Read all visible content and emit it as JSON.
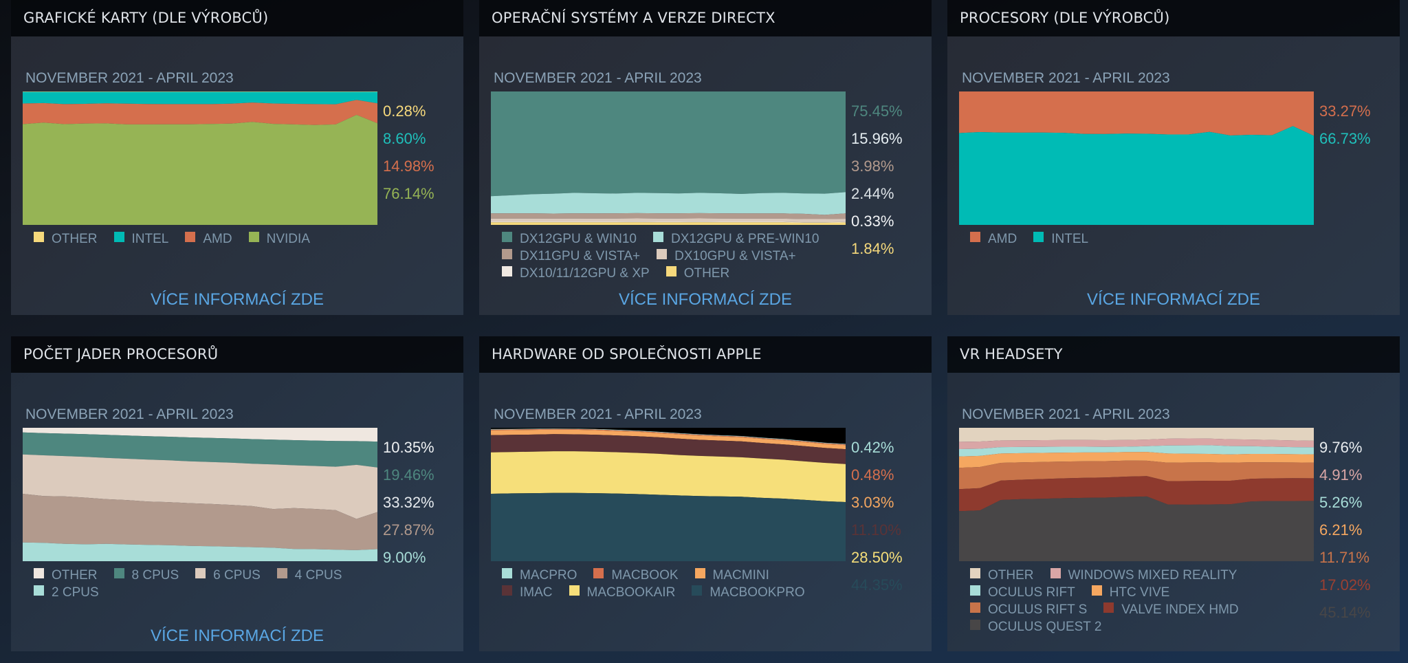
{
  "panels": [
    {
      "title": "GRAFICKÉ KARTY (DLE VÝROBCŮ)",
      "date_range": "NOVEMBER 2021 - APRIL 2023",
      "more_link": "VÍCE INFORMACÍ ZDE",
      "legend_rows": [
        [
          0,
          1,
          2,
          3
        ]
      ],
      "values_order": [
        0,
        1,
        2,
        3
      ]
    },
    {
      "title": "OPERAČNÍ SYSTÉMY A VERZE DIRECTX",
      "date_range": "NOVEMBER 2021 - APRIL 2023",
      "more_link": "VÍCE INFORMACÍ ZDE",
      "legend_rows": [
        [
          0,
          1
        ],
        [
          2,
          3
        ],
        [
          4,
          5
        ]
      ],
      "values_order": [
        0,
        1,
        2,
        3,
        4,
        5
      ]
    },
    {
      "title": "PROCESORY (DLE VÝROBCŮ)",
      "date_range": "NOVEMBER 2021 - APRIL 2023",
      "more_link": "VÍCE INFORMACÍ ZDE",
      "legend_rows": [
        [
          0,
          1
        ]
      ],
      "values_order": [
        0,
        1
      ]
    },
    {
      "title": "POČET JADER PROCESORŮ",
      "date_range": "NOVEMBER 2021 - APRIL 2023",
      "more_link": "VÍCE INFORMACÍ ZDE",
      "legend_rows": [
        [
          0,
          1,
          2,
          3
        ],
        [
          4
        ]
      ],
      "values_order": [
        0,
        1,
        2,
        3,
        4
      ]
    },
    {
      "title": "HARDWARE OD SPOLEČNOSTI APPLE",
      "date_range": "NOVEMBER 2021 - APRIL 2023",
      "more_link": "",
      "legend_rows": [
        [
          0,
          1,
          2
        ],
        [
          3,
          4,
          5
        ]
      ],
      "values_order": [
        0,
        1,
        2,
        3,
        4,
        5
      ]
    },
    {
      "title": "VR HEADSETY",
      "date_range": "NOVEMBER 2021 - APRIL 2023",
      "more_link": "",
      "legend_rows": [
        [
          0,
          1
        ],
        [
          2,
          3
        ],
        [
          4,
          5
        ],
        [
          6
        ]
      ],
      "values_order": [
        0,
        1,
        2,
        3,
        4,
        5,
        6
      ]
    }
  ],
  "chart_data": [
    {
      "type": "area",
      "title": "GRAFICKÉ KARTY (DLE VÝROBCŮ)",
      "xlabel": "NOVEMBER 2021 - APRIL 2023",
      "ylim": [
        0,
        100
      ],
      "stacked": true,
      "grid": false,
      "legend": "bottom",
      "series": [
        {
          "name": "OTHER",
          "color": "#f6d97c",
          "label_color": "#f6d97c",
          "latest": "0.28%",
          "values": [
            0.3,
            0.3,
            0.3,
            0.3,
            0.3,
            0.3,
            0.3,
            0.3,
            0.3,
            0.3,
            0.3,
            0.3,
            0.3,
            0.3,
            0.3,
            0.3,
            0.3,
            0.28
          ]
        },
        {
          "name": "INTEL",
          "color": "#00bbb5",
          "label_color": "#1fc0bb",
          "latest": "8.60%",
          "values": [
            8.7,
            8.4,
            9.2,
            9.0,
            8.6,
            8.8,
            9.1,
            9.2,
            9.2,
            9.2,
            8.8,
            8.0,
            8.7,
            9.0,
            9.2,
            9.3,
            6.0,
            8.6
          ]
        },
        {
          "name": "AMD",
          "color": "#d56f4d",
          "label_color": "#d56f4d",
          "latest": "14.98%",
          "values": [
            15.5,
            14.6,
            15.0,
            14.7,
            15.0,
            15.6,
            15.3,
            15.1,
            15.1,
            14.9,
            15.0,
            14.5,
            15.3,
            15.4,
            15.6,
            15.1,
            11.2,
            14.98
          ]
        },
        {
          "name": "NVIDIA",
          "color": "#96b455",
          "label_color": "#96b455",
          "latest": "76.14%",
          "values": [
            75.5,
            76.7,
            75.5,
            76.0,
            76.1,
            75.3,
            75.3,
            75.4,
            75.4,
            75.6,
            75.9,
            77.2,
            75.7,
            75.3,
            74.9,
            75.3,
            82.5,
            76.14
          ]
        }
      ]
    },
    {
      "type": "area",
      "title": "OPERAČNÍ SYSTÉMY A VERZE DIRECTX",
      "xlabel": "NOVEMBER 2021 - APRIL 2023",
      "ylim": [
        0,
        100
      ],
      "stacked": true,
      "grid": false,
      "legend": "bottom",
      "series": [
        {
          "name": "DX12GPU & WIN10",
          "color": "#4e877f",
          "label_color": "#4e877f",
          "latest": "75.45%",
          "values": [
            78.5,
            77.8,
            77.0,
            76.6,
            76.0,
            76.3,
            76.5,
            76.0,
            76.2,
            76.4,
            76.0,
            76.3,
            76.8,
            76.2,
            76.0,
            76.4,
            76.6,
            75.45
          ]
        },
        {
          "name": "DX12GPU & PRE-WIN10",
          "color": "#a8ddd8",
          "label_color": "#e6eef2",
          "latest": "15.96%",
          "values": [
            12.9,
            13.5,
            14.3,
            14.9,
            15.3,
            15.1,
            14.8,
            15.2,
            15.1,
            14.9,
            15.2,
            15.0,
            14.6,
            15.2,
            15.4,
            15.3,
            15.9,
            15.96
          ]
        },
        {
          "name": "DX11GPU & VISTA+",
          "color": "#b29a8d",
          "label_color": "#b29a8d",
          "latest": "3.98%",
          "values": [
            3.9,
            3.9,
            3.9,
            3.8,
            3.9,
            3.9,
            3.9,
            3.9,
            3.9,
            3.9,
            3.9,
            3.9,
            3.9,
            3.9,
            3.9,
            3.9,
            3.1,
            3.98
          ]
        },
        {
          "name": "DX10GPU & VISTA+",
          "color": "#dccbbd",
          "label_color": "#dce2e6",
          "latest": "2.44%",
          "values": [
            2.4,
            2.5,
            2.5,
            2.4,
            2.5,
            2.4,
            2.5,
            2.5,
            2.5,
            2.5,
            2.5,
            2.5,
            2.4,
            2.4,
            2.4,
            2.4,
            2.4,
            2.44
          ]
        },
        {
          "name": "DX10/11/12GPU & XP",
          "color": "#f0e9e2",
          "label_color": "#f0f2f4",
          "latest": "0.33%",
          "values": [
            0.4,
            0.4,
            0.4,
            0.4,
            0.4,
            0.4,
            0.4,
            0.4,
            0.4,
            0.4,
            0.4,
            0.4,
            0.4,
            0.4,
            0.4,
            0.3,
            0.3,
            0.33
          ]
        },
        {
          "name": "OTHER",
          "color": "#f6d97c",
          "label_color": "#f6d97c",
          "latest": "1.84%",
          "values": [
            1.9,
            1.9,
            1.9,
            1.9,
            1.9,
            1.9,
            1.9,
            2.0,
            1.9,
            1.9,
            2.0,
            1.9,
            1.9,
            1.9,
            1.9,
            1.7,
            1.7,
            1.84
          ]
        }
      ]
    },
    {
      "type": "area",
      "title": "PROCESORY (DLE VÝROBCŮ)",
      "xlabel": "NOVEMBER 2021 - APRIL 2023",
      "ylim": [
        0,
        100
      ],
      "stacked": true,
      "grid": false,
      "legend": "bottom",
      "series": [
        {
          "name": "AMD",
          "color": "#d56f4d",
          "label_color": "#d56f4d",
          "latest": "33.27%",
          "values": [
            31.2,
            30.4,
            30.8,
            30.9,
            30.8,
            31.0,
            31.8,
            31.9,
            31.6,
            31.7,
            32.2,
            32.2,
            30.3,
            33.0,
            32.5,
            32.8,
            26.0,
            33.27
          ]
        },
        {
          "name": "INTEL",
          "color": "#00bbb5",
          "label_color": "#1fc0bb",
          "latest": "66.73%",
          "values": [
            68.8,
            69.6,
            69.2,
            69.1,
            69.2,
            69.0,
            68.2,
            68.1,
            68.4,
            68.3,
            67.8,
            67.8,
            69.7,
            67.0,
            67.5,
            67.2,
            74.0,
            66.73
          ]
        }
      ]
    },
    {
      "type": "area",
      "title": "POČET JADER PROCESORŮ",
      "xlabel": "NOVEMBER 2021 - APRIL 2023",
      "ylim": [
        0,
        100
      ],
      "stacked": true,
      "grid": false,
      "legend": "bottom",
      "series": [
        {
          "name": "OTHER",
          "color": "#efe7e0",
          "label_color": "#eef1f3",
          "latest": "10.35%",
          "values": [
            3.5,
            4.0,
            4.4,
            4.8,
            5.3,
            5.8,
            6.3,
            6.7,
            7.2,
            7.6,
            8.0,
            8.5,
            8.9,
            9.3,
            9.6,
            9.9,
            10.0,
            10.35
          ]
        },
        {
          "name": "8 CPUS",
          "color": "#4e877f",
          "label_color": "#4e877f",
          "latest": "19.46%",
          "values": [
            16.5,
            16.6,
            16.8,
            17.0,
            17.2,
            17.4,
            17.5,
            17.7,
            17.9,
            18.0,
            18.2,
            18.4,
            18.6,
            18.8,
            19.0,
            19.3,
            17.8,
            19.46
          ]
        },
        {
          "name": "6 CPUS",
          "color": "#dccbbd",
          "label_color": "#e6eaee",
          "latest": "33.32%",
          "values": [
            29.5,
            30.6,
            30.2,
            30.5,
            31.0,
            31.0,
            31.5,
            31.3,
            31.4,
            31.5,
            31.6,
            31.8,
            33.4,
            32.1,
            32.2,
            32.5,
            40.5,
            33.32
          ]
        },
        {
          "name": "4 CPUS",
          "color": "#b29a8d",
          "label_color": "#b29a8d",
          "latest": "27.87%",
          "values": [
            36.5,
            35.0,
            35.6,
            35.0,
            33.5,
            33.2,
            32.5,
            32.3,
            32.0,
            31.7,
            31.3,
            30.8,
            29.0,
            30.6,
            30.2,
            29.7,
            23.4,
            27.87
          ]
        },
        {
          "name": "2 CPUS",
          "color": "#a8ddd8",
          "label_color": "#a8ddd8",
          "latest": "9.00%",
          "values": [
            14.0,
            13.8,
            13.0,
            12.7,
            13.0,
            12.6,
            12.2,
            12.0,
            11.5,
            11.2,
            10.9,
            10.5,
            10.1,
            9.2,
            9.0,
            8.6,
            8.3,
            9.0
          ]
        }
      ]
    },
    {
      "type": "area",
      "title": "HARDWARE OD SPOLEČNOSTI APPLE",
      "xlabel": "NOVEMBER 2021 - APRIL 2023",
      "ylim": [
        0,
        100
      ],
      "stacked": true,
      "grid": false,
      "legend": "bottom",
      "series": [
        {
          "name": "MACPRO",
          "color": "#a8ddd8",
          "label_color": "#a8ddd8",
          "latest": "0.42%",
          "values": [
            0.4,
            0.4,
            0.4,
            0.4,
            0.4,
            0.4,
            0.4,
            0.4,
            0.4,
            0.4,
            0.4,
            0.4,
            0.4,
            0.4,
            0.4,
            0.4,
            0.4,
            0.42
          ]
        },
        {
          "name": "MACBOOK",
          "color": "#d56f4d",
          "label_color": "#d56f4d",
          "latest": "0.48%",
          "values": [
            0.5,
            0.5,
            0.5,
            0.5,
            0.5,
            0.5,
            0.5,
            0.5,
            0.5,
            0.5,
            0.5,
            0.5,
            0.5,
            0.5,
            0.5,
            0.5,
            0.5,
            0.48
          ]
        },
        {
          "name": "MACMINI",
          "color": "#f5a760",
          "label_color": "#f5a760",
          "latest": "3.03%",
          "values": [
            3.6,
            3.5,
            3.5,
            3.4,
            3.4,
            3.4,
            3.3,
            3.3,
            3.2,
            3.2,
            3.2,
            3.1,
            3.1,
            3.1,
            3.1,
            3.0,
            3.0,
            3.03
          ]
        },
        {
          "name": "IMAC",
          "color": "#5a3337",
          "label_color": "#5a3337",
          "latest": "11.10%",
          "values": [
            12.9,
            12.9,
            12.8,
            12.8,
            12.7,
            12.7,
            12.6,
            12.5,
            12.4,
            12.3,
            12.1,
            12.0,
            11.9,
            11.7,
            11.5,
            11.4,
            11.2,
            11.1
          ]
        },
        {
          "name": "MACBOOKAIR",
          "color": "#f6df7a",
          "label_color": "#f6df7a",
          "latest": "28.50%",
          "values": [
            31.1,
            31.0,
            31.1,
            31.2,
            31.2,
            31.1,
            31.0,
            30.9,
            30.7,
            30.3,
            30.1,
            29.8,
            29.6,
            29.4,
            29.2,
            28.9,
            28.7,
            28.5
          ]
        },
        {
          "name": "MACBOOKPRO",
          "color": "#274b5a",
          "label_color": "#274b5a",
          "latest": "44.35%",
          "values": [
            50.5,
            50.8,
            51.0,
            51.2,
            51.2,
            51.0,
            50.7,
            50.3,
            49.8,
            49.3,
            48.8,
            48.6,
            48.3,
            47.5,
            46.9,
            46.0,
            45.0,
            44.35
          ]
        }
      ]
    },
    {
      "type": "area",
      "title": "VR HEADSETY",
      "xlabel": "NOVEMBER 2021 - APRIL 2023",
      "ylim": [
        0,
        100
      ],
      "stacked": true,
      "grid": false,
      "legend": "bottom",
      "series": [
        {
          "name": "OTHER",
          "color": "#e2d3bf",
          "label_color": "#e8ecef",
          "latest": "9.76%",
          "values": [
            10.5,
            10.3,
            9.5,
            9.4,
            9.3,
            9.2,
            9.2,
            9.3,
            9.2,
            8.8,
            8.2,
            8.0,
            8.1,
            8.6,
            8.8,
            9.2,
            9.5,
            9.76
          ]
        },
        {
          "name": "WINDOWS MIXED REALITY",
          "color": "#d9a6a6",
          "label_color": "#d9a6a6",
          "latest": "4.91%",
          "values": [
            5.5,
            5.4,
            5.0,
            5.0,
            5.0,
            5.0,
            5.0,
            5.0,
            5.0,
            5.0,
            5.1,
            5.2,
            5.0,
            5.1,
            5.0,
            5.0,
            5.0,
            4.91
          ]
        },
        {
          "name": "OCULUS RIFT",
          "color": "#a8ddd8",
          "label_color": "#a8ddd8",
          "latest": "5.26%",
          "values": [
            5.5,
            5.4,
            4.8,
            4.6,
            4.5,
            4.4,
            4.3,
            4.2,
            4.0,
            4.3,
            6.0,
            6.3,
            6.5,
            6.3,
            5.8,
            5.4,
            5.3,
            5.26
          ]
        },
        {
          "name": "HTC VIVE",
          "color": "#f5a760",
          "label_color": "#f5a760",
          "latest": "6.21%",
          "values": [
            8.5,
            8.3,
            7.0,
            6.9,
            6.8,
            6.7,
            6.6,
            6.5,
            6.4,
            6.6,
            6.9,
            6.5,
            6.3,
            6.2,
            6.2,
            6.3,
            6.2,
            6.21
          ]
        },
        {
          "name": "OCULUS RIFT S",
          "color": "#c8744a",
          "label_color": "#c8744a",
          "latest": "11.71%",
          "values": [
            16.0,
            15.8,
            13.3,
            13.0,
            12.8,
            12.6,
            12.4,
            12.2,
            12.0,
            11.5,
            13.8,
            13.9,
            13.8,
            13.5,
            12.4,
            12.0,
            11.8,
            11.71
          ]
        },
        {
          "name": "VALVE INDEX HMD",
          "color": "#8e3a2e",
          "label_color": "#9a4032",
          "latest": "17.02%",
          "values": [
            16.5,
            16.7,
            14.5,
            14.6,
            14.8,
            14.9,
            15.0,
            15.1,
            15.2,
            15.3,
            17.5,
            17.8,
            17.8,
            17.6,
            17.0,
            17.0,
            17.1,
            17.02
          ]
        },
        {
          "name": "OCULUS QUEST 2",
          "color": "#484647",
          "label_color": "#484647",
          "latest": "45.14%",
          "values": [
            37.5,
            38.1,
            45.9,
            46.5,
            46.8,
            47.2,
            47.5,
            47.7,
            48.2,
            48.5,
            42.5,
            42.3,
            42.5,
            42.7,
            44.8,
            45.1,
            45.1,
            45.14
          ]
        }
      ]
    }
  ]
}
